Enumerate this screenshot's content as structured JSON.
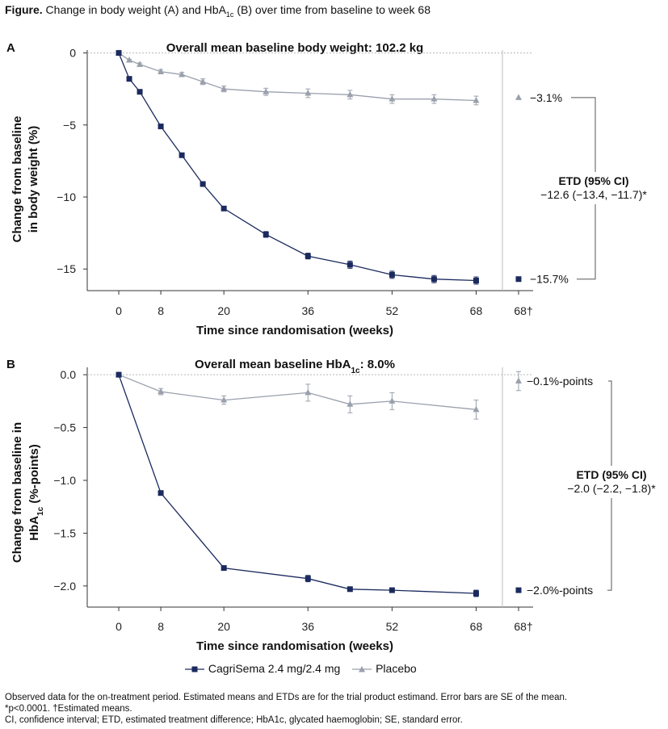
{
  "figure_title": {
    "label": "Figure.",
    "text_a": " Change in body weight (A) and HbA",
    "sub": "1c",
    "text_b": " (B) over time from baseline to week 68"
  },
  "legend": {
    "series": [
      {
        "name": "CagriSema 2.4 mg/2.4 mg",
        "color": "#1b2a5e",
        "marker": "square"
      },
      {
        "name": "Placebo",
        "color": "#9aa0ac",
        "marker": "triangle"
      }
    ]
  },
  "footnotes": {
    "line1": "Observed data for the on-treatment period. Estimated means and ETDs are for the trial product estimand. Error bars are SE of the mean.",
    "line2": "*p<0.0001. †Estimated means.",
    "line3": "CI, confidence interval; ETD, estimated treatment difference; HbA1c, glycated haemoglobin; SE, standard error."
  },
  "chart_data": [
    {
      "panel": "A",
      "type": "line",
      "title": "Overall mean baseline body weight: 102.2 kg",
      "xlabel": "Time since randomisation (weeks)",
      "ylabel_lines": [
        "Change from baseline",
        "in body weight (%)"
      ],
      "xlim": [
        -6,
        73
      ],
      "ylim": [
        -16.5,
        0.2
      ],
      "x_ticks": [
        0,
        8,
        20,
        36,
        52,
        68
      ],
      "x_tick_labels": [
        "0",
        "8",
        "20",
        "36",
        "52",
        "68"
      ],
      "y_ticks": [
        0,
        -5,
        -10,
        -15
      ],
      "y_tick_labels": [
        "0",
        "−5",
        "−10",
        "−15"
      ],
      "estimated_tick_label": "68†",
      "series": [
        {
          "name": "CagriSema 2.4 mg/2.4 mg",
          "x": [
            0,
            2,
            4,
            8,
            12,
            16,
            20,
            28,
            36,
            44,
            52,
            60,
            68
          ],
          "values": [
            0,
            -1.8,
            -2.7,
            -5.1,
            -7.1,
            -9.1,
            -10.8,
            -12.6,
            -14.1,
            -14.7,
            -15.4,
            -15.7,
            -15.8
          ],
          "se": [
            0,
            0.1,
            0.1,
            0.1,
            0.1,
            0.15,
            0.15,
            0.2,
            0.2,
            0.25,
            0.25,
            0.25,
            0.25
          ],
          "estimated": -15.7,
          "end_label": "−15.7%"
        },
        {
          "name": "Placebo",
          "x": [
            0,
            2,
            4,
            8,
            12,
            16,
            20,
            28,
            36,
            44,
            52,
            60,
            68
          ],
          "values": [
            0,
            -0.5,
            -0.8,
            -1.3,
            -1.5,
            -2.0,
            -2.5,
            -2.7,
            -2.8,
            -2.9,
            -3.2,
            -3.2,
            -3.3
          ],
          "se": [
            0,
            0.05,
            0.1,
            0.15,
            0.15,
            0.2,
            0.2,
            0.25,
            0.3,
            0.3,
            0.3,
            0.3,
            0.3
          ],
          "estimated": -3.1,
          "end_label": "−3.1%"
        }
      ],
      "etd": {
        "heading": "ETD (95% CI)",
        "value": "−12.6 (−13.4, −11.7)*"
      }
    },
    {
      "panel": "B",
      "type": "line",
      "title_a": "Overall mean baseline HbA",
      "title_sub": "1c",
      "title_b": ": 8.0%",
      "xlabel": "Time since randomisation (weeks)",
      "ylabel_line1": "Change from baseline in",
      "ylabel_line2_a": "HbA",
      "ylabel_line2_sub": "1c",
      "ylabel_line2_b": " (%-points)",
      "xlim": [
        -6,
        73
      ],
      "ylim": [
        -2.2,
        0.07
      ],
      "x_ticks": [
        0,
        8,
        20,
        36,
        52,
        68
      ],
      "x_tick_labels": [
        "0",
        "8",
        "20",
        "36",
        "52",
        "68"
      ],
      "y_ticks": [
        0,
        -0.5,
        -1.0,
        -1.5,
        -2.0
      ],
      "y_tick_labels": [
        "0.0",
        "−0.5",
        "−1.0",
        "−1.5",
        "−2.0"
      ],
      "estimated_tick_label": "68†",
      "series": [
        {
          "name": "CagriSema 2.4 mg/2.4 mg",
          "x": [
            0,
            8,
            20,
            36,
            44,
            52,
            68
          ],
          "values": [
            0,
            -1.12,
            -1.83,
            -1.93,
            -2.03,
            -2.04,
            -2.07
          ],
          "se": [
            0,
            0.02,
            0.02,
            0.03,
            0.02,
            0.02,
            0.03
          ],
          "estimated": -2.04,
          "end_label": "−2.0%-points"
        },
        {
          "name": "Placebo",
          "x": [
            0,
            8,
            20,
            36,
            44,
            52,
            68
          ],
          "values": [
            0,
            -0.16,
            -0.24,
            -0.17,
            -0.28,
            -0.25,
            -0.33
          ],
          "se": [
            0,
            0.03,
            0.04,
            0.08,
            0.08,
            0.08,
            0.09
          ],
          "estimated": -0.06,
          "estimated_se": 0.09,
          "end_label": "−0.1%-points"
        }
      ],
      "etd": {
        "heading": "ETD (95% CI)",
        "value": "−2.0 (−2.2, −1.8)*"
      }
    }
  ]
}
